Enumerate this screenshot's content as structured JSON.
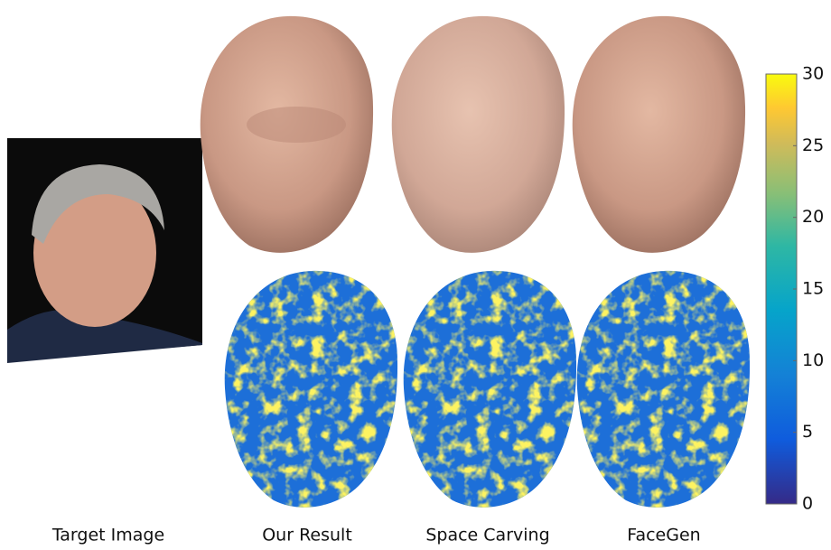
{
  "columns": [
    "Target Image",
    "Our Result",
    "Space Carving",
    "FaceGen"
  ],
  "colorbar": {
    "range": [
      0,
      30
    ],
    "ticks": [
      0,
      5,
      10,
      15,
      20,
      25,
      30
    ]
  }
}
